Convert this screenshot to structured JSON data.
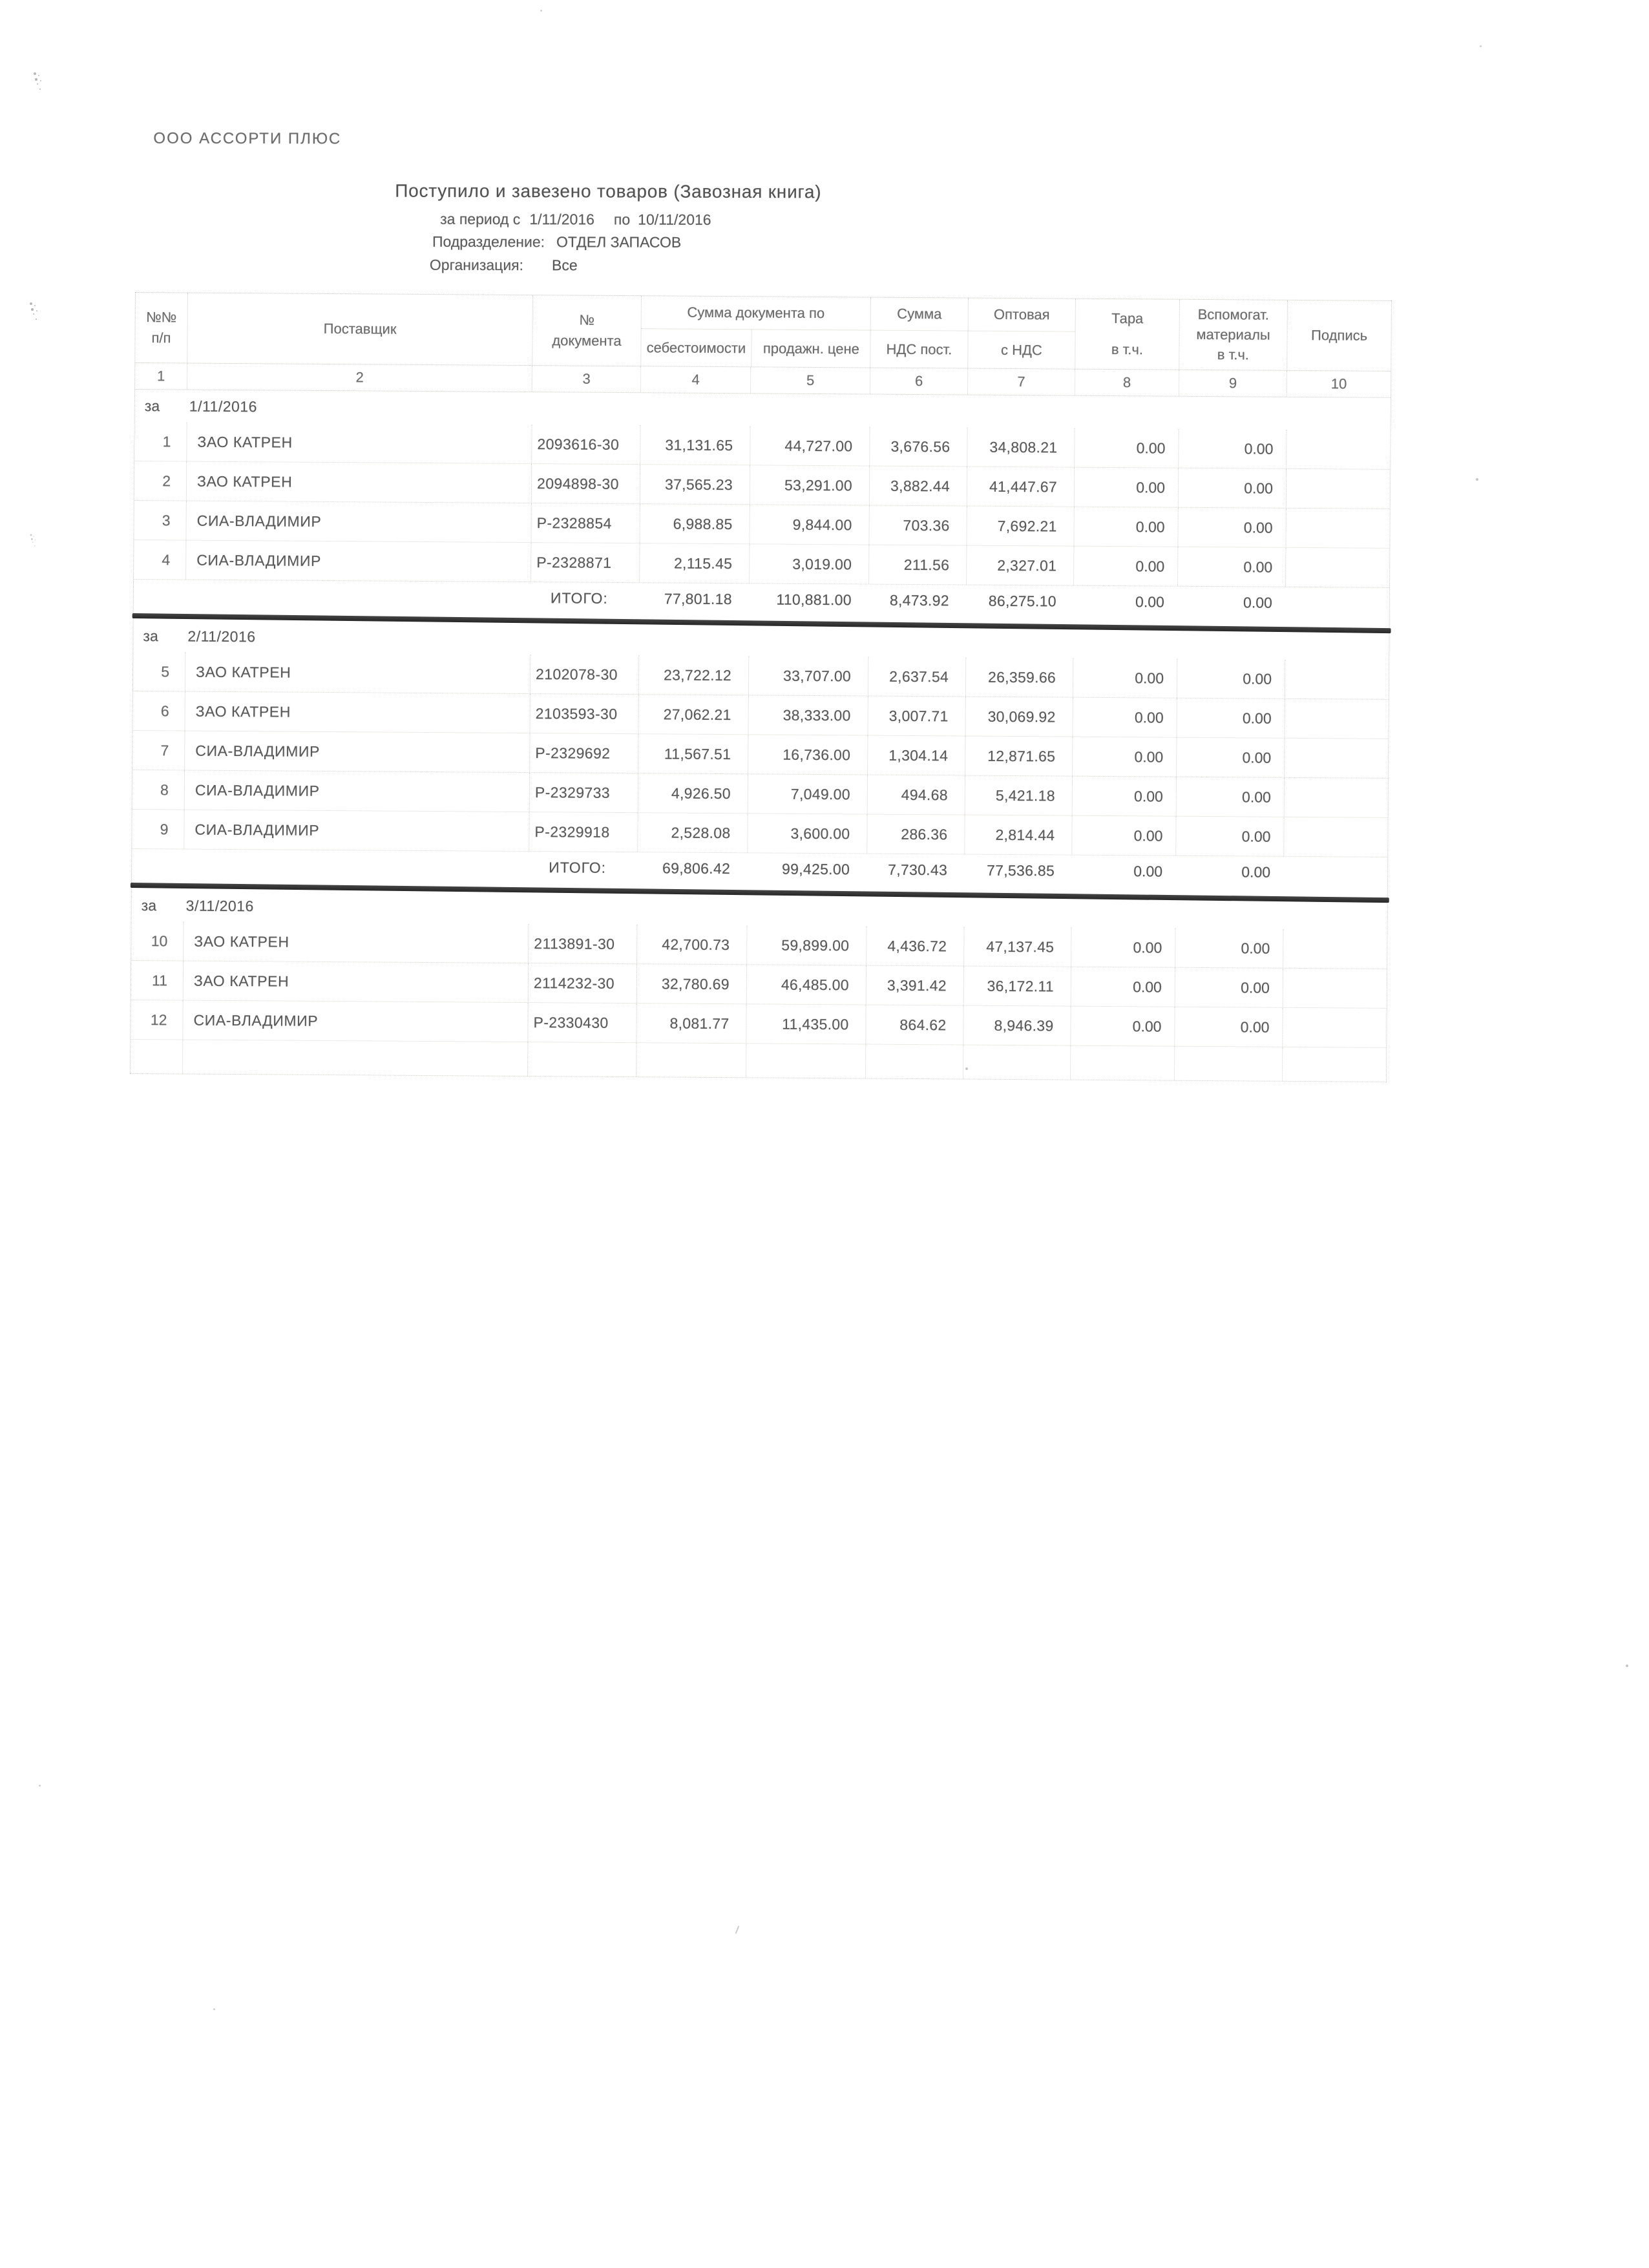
{
  "header": {
    "company": "ООО АССОРТИ ПЛЮС",
    "title": "Поступило и завезено товаров (Завозная книга)",
    "period": {
      "prefix": "за период с",
      "from": "1/11/2016",
      "to_label": "по",
      "to": "10/11/2016"
    },
    "department": {
      "label": "Подразделение:",
      "value": "ОТДЕЛ ЗАПАСОВ"
    },
    "organization": {
      "label": "Организация:",
      "value": "Все"
    }
  },
  "table": {
    "columns": {
      "c1": [
        "№№",
        "п/п"
      ],
      "c2": "Поставщик",
      "c3": [
        "№",
        "документа"
      ],
      "group45": "Сумма документа по",
      "c4": "себестоимости",
      "c5": "продажн. цене",
      "c6": [
        "Сумма",
        "НДС пост."
      ],
      "c7": [
        "Оптовая",
        "с НДС"
      ],
      "c8": [
        "Тара",
        "в т.ч."
      ],
      "c9": [
        "Вспомогат.",
        "материалы",
        "в т.ч."
      ],
      "c10": "Подпись"
    },
    "numbers": [
      "1",
      "2",
      "3",
      "4",
      "5",
      "6",
      "7",
      "8",
      "9",
      "10"
    ],
    "groups": [
      {
        "prefix": "за",
        "date": "1/11/2016",
        "rows": [
          {
            "n": "1",
            "supplier": "ЗАО КАТРЕН",
            "doc": "2093616-30",
            "cost": "31,131.65",
            "sale": "44,727.00",
            "vat": "3,676.56",
            "gross": "34,808.21",
            "tara": "0.00",
            "aux": "0.00",
            "sign": ""
          },
          {
            "n": "2",
            "supplier": "ЗАО КАТРЕН",
            "doc": "2094898-30",
            "cost": "37,565.23",
            "sale": "53,291.00",
            "vat": "3,882.44",
            "gross": "41,447.67",
            "tara": "0.00",
            "aux": "0.00",
            "sign": ""
          },
          {
            "n": "3",
            "supplier": "СИА-ВЛАДИМИР",
            "doc": "Р-2328854",
            "cost": "6,988.85",
            "sale": "9,844.00",
            "vat": "703.36",
            "gross": "7,692.21",
            "tara": "0.00",
            "aux": "0.00",
            "sign": ""
          },
          {
            "n": "4",
            "supplier": "СИА-ВЛАДИМИР",
            "doc": "Р-2328871",
            "cost": "2,115.45",
            "sale": "3,019.00",
            "vat": "211.56",
            "gross": "2,327.01",
            "tara": "0.00",
            "aux": "0.00",
            "sign": ""
          }
        ],
        "total": {
          "label": "ИТОГО:",
          "cost": "77,801.18",
          "sale": "110,881.00",
          "vat": "8,473.92",
          "gross": "86,275.10",
          "tara": "0.00",
          "aux": "0.00"
        }
      },
      {
        "prefix": "за",
        "date": "2/11/2016",
        "rows": [
          {
            "n": "5",
            "supplier": "ЗАО КАТРЕН",
            "doc": "2102078-30",
            "cost": "23,722.12",
            "sale": "33,707.00",
            "vat": "2,637.54",
            "gross": "26,359.66",
            "tara": "0.00",
            "aux": "0.00",
            "sign": ""
          },
          {
            "n": "6",
            "supplier": "ЗАО КАТРЕН",
            "doc": "2103593-30",
            "cost": "27,062.21",
            "sale": "38,333.00",
            "vat": "3,007.71",
            "gross": "30,069.92",
            "tara": "0.00",
            "aux": "0.00",
            "sign": ""
          },
          {
            "n": "7",
            "supplier": "СИА-ВЛАДИМИР",
            "doc": "Р-2329692",
            "cost": "11,567.51",
            "sale": "16,736.00",
            "vat": "1,304.14",
            "gross": "12,871.65",
            "tara": "0.00",
            "aux": "0.00",
            "sign": ""
          },
          {
            "n": "8",
            "supplier": "СИА-ВЛАДИМИР",
            "doc": "Р-2329733",
            "cost": "4,926.50",
            "sale": "7,049.00",
            "vat": "494.68",
            "gross": "5,421.18",
            "tara": "0.00",
            "aux": "0.00",
            "sign": ""
          },
          {
            "n": "9",
            "supplier": "СИА-ВЛАДИМИР",
            "doc": "Р-2329918",
            "cost": "2,528.08",
            "sale": "3,600.00",
            "vat": "286.36",
            "gross": "2,814.44",
            "tara": "0.00",
            "aux": "0.00",
            "sign": ""
          }
        ],
        "total": {
          "label": "ИТОГО:",
          "cost": "69,806.42",
          "sale": "99,425.00",
          "vat": "7,730.43",
          "gross": "77,536.85",
          "tara": "0.00",
          "aux": "0.00"
        }
      },
      {
        "prefix": "за",
        "date": "3/11/2016",
        "rows": [
          {
            "n": "10",
            "supplier": "ЗАО КАТРЕН",
            "doc": "2113891-30",
            "cost": "42,700.73",
            "sale": "59,899.00",
            "vat": "4,436.72",
            "gross": "47,137.45",
            "tara": "0.00",
            "aux": "0.00",
            "sign": ""
          },
          {
            "n": "11",
            "supplier": "ЗАО КАТРЕН",
            "doc": "2114232-30",
            "cost": "32,780.69",
            "sale": "46,485.00",
            "vat": "3,391.42",
            "gross": "36,172.11",
            "tara": "0.00",
            "aux": "0.00",
            "sign": ""
          },
          {
            "n": "12",
            "supplier": "СИА-ВЛАДИМИР",
            "doc": "Р-2330430",
            "cost": "8,081.77",
            "sale": "11,435.00",
            "vat": "864.62",
            "gross": "8,946.39",
            "tara": "0.00",
            "aux": "0.00",
            "sign": ""
          }
        ]
      }
    ]
  }
}
